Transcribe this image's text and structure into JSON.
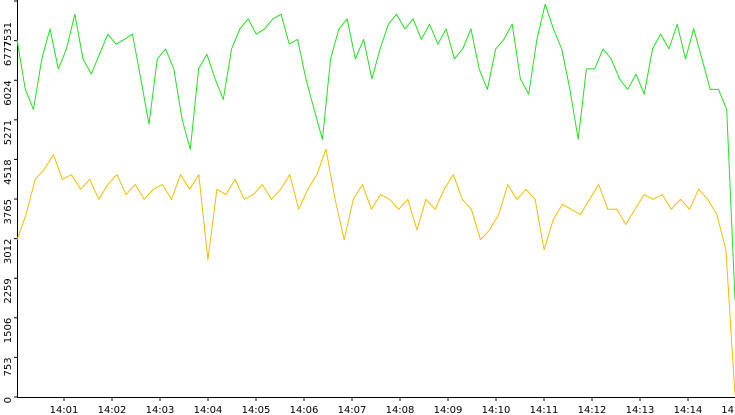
{
  "chart_data": {
    "type": "line",
    "ylim": [
      0,
      7531
    ],
    "yticks": [
      0,
      753,
      1506,
      2259,
      3012,
      3765,
      4518,
      5271,
      6024,
      6777,
      7531
    ],
    "xtick_labels": [
      "14:01",
      "14:02",
      "14:03",
      "14:04",
      "14:05",
      "14:06",
      "14:07",
      "14:08",
      "14:09",
      "14:10",
      "14:11",
      "14:12",
      "14:13",
      "14:14",
      "14"
    ],
    "series": [
      {
        "color": "#22e022",
        "values": [
          6800,
          5850,
          5470,
          6430,
          7000,
          6240,
          6620,
          7280,
          6430,
          6140,
          6520,
          6900,
          6710,
          6800,
          6900,
          6050,
          5190,
          6430,
          6620,
          6240,
          5280,
          4710,
          6240,
          6520,
          6050,
          5660,
          6620,
          7000,
          7190,
          6900,
          7000,
          7190,
          7280,
          6710,
          6800,
          6050,
          5470,
          4900,
          6430,
          7000,
          7190,
          6430,
          6800,
          6050,
          6620,
          7090,
          7280,
          7000,
          7190,
          6800,
          7090,
          6710,
          7000,
          6430,
          6620,
          7000,
          6240,
          5850,
          6620,
          6800,
          7090,
          6050,
          5760,
          6800,
          7470,
          7000,
          6620,
          5850,
          4900,
          6240,
          6240,
          6620,
          6430,
          6050,
          5850,
          6140,
          5760,
          6620,
          6900,
          6620,
          7090,
          6430,
          7000,
          6430,
          5850,
          5850,
          5470,
          1850
        ]
      },
      {
        "color": "#f2bd00",
        "values": [
          2990,
          3470,
          4140,
          4330,
          4610,
          4140,
          4230,
          3950,
          4140,
          3760,
          4040,
          4230,
          3850,
          4040,
          3760,
          3950,
          4040,
          3760,
          4230,
          3950,
          4230,
          2610,
          3950,
          3850,
          4140,
          3760,
          3850,
          4040,
          3760,
          3950,
          4230,
          3570,
          3950,
          4230,
          4710,
          3760,
          2990,
          3760,
          4040,
          3570,
          3850,
          3760,
          3570,
          3760,
          3180,
          3760,
          3570,
          3950,
          4230,
          3760,
          3570,
          2990,
          3180,
          3470,
          4040,
          3760,
          3950,
          3760,
          2800,
          3370,
          3660,
          3570,
          3470,
          3760,
          4040,
          3570,
          3570,
          3280,
          3570,
          3850,
          3760,
          3850,
          3570,
          3760,
          3570,
          3950,
          3760,
          3470,
          2800,
          40
        ]
      }
    ]
  }
}
